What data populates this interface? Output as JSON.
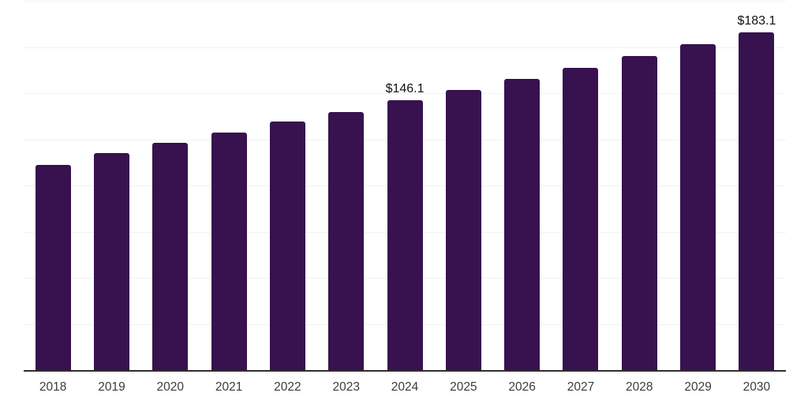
{
  "chart_data": {
    "type": "bar",
    "categories": [
      "2018",
      "2019",
      "2020",
      "2021",
      "2022",
      "2023",
      "2024",
      "2025",
      "2026",
      "2027",
      "2028",
      "2029",
      "2030"
    ],
    "values": [
      111.0,
      117.4,
      122.9,
      128.6,
      134.7,
      139.8,
      146.1,
      151.6,
      157.9,
      163.6,
      170.1,
      176.5,
      183.1
    ],
    "data_labels": [
      {
        "category": "2024",
        "text": "$146.1"
      },
      {
        "category": "2030",
        "text": "$183.1"
      }
    ],
    "title": "",
    "xlabel": "",
    "ylabel": "",
    "ylim": [
      0,
      200
    ],
    "gridline_step": 25,
    "grid": "horizontal",
    "y_tick_labels_visible": false,
    "legend": "none",
    "colors": {
      "bar": "#37124E",
      "axis_line": "#2e2e2e",
      "gridline": "#f2f2f2",
      "x_tick_label": "#3c3c3c",
      "data_label": "#111111",
      "background": "#ffffff"
    }
  }
}
